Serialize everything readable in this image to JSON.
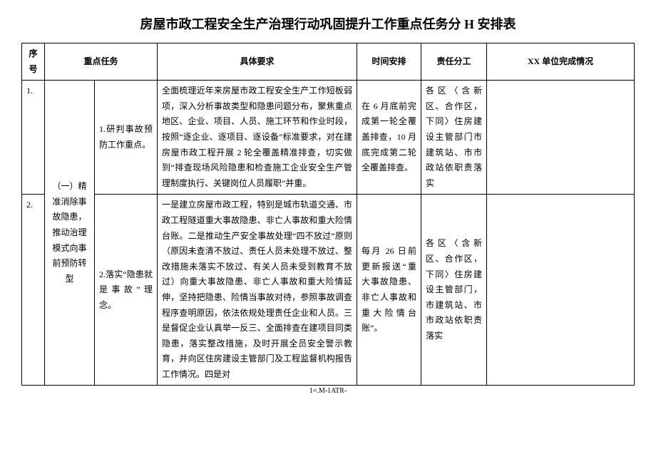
{
  "title": "房屋市政工程安全生产治理行动巩固提升工作重点任务分 H 安排表",
  "headers": {
    "seq": "序号",
    "task": "重点任务",
    "req": "具体要求",
    "time": "时间安排",
    "resp": "责任分工",
    "status": "XX 单位完成情况"
  },
  "group_task": "（一）精准消除事故隐患，推动治理模式向事前预防转型",
  "rows": [
    {
      "seq": "1.",
      "sub": "1.研判事故预防工作重点。",
      "req": "全面梳理近年来房屋市政工程安全生产工作短板弱项，深入分析事故类型和隐患问题分布，聚焦重点地区、企业、项目、人员、施工环节和作业时段，按照“逐企业、逐项目、逐设备”标准要求，对在建房屋市政工程开展 2 轮全覆盖精准排查，切实做到“排查现场风险隐患和检查施工企业安全生产管理制度执行、关键岗位人员履职”并重。",
      "time": "在 6 月底前完成第一轮全覆盖排查，10 月底完成第二轮全覆盖排查。",
      "resp": "各区〈含新区、合作区，下同〉住房建设主管部门市建筑站、市市政站依职责落实",
      "status": ""
    },
    {
      "seq": "2.",
      "sub": "2.落实“隐患就是事故”理念。",
      "req": "一是建立房屋市政工程，特别是城市轨道交通、市政工程隧道重大事故隐患、非亡人事故和重大险情台账。二是推动生产安全事故处理“四不放过”原则（原因未查清不放过、责任人员未处理不放过、整改措施未落实不放过、有关人员未受到教育不放过）向重大事故隐患、非亡人事故和重大险情延伸，坚持把隐患、险情当事故对待，参照事故调查程序查明原因，依法依规处理责任企业和人员。三是督促企业认真举一反三、全面排查在建项目同类隐患，落实整改措施，及时开展全员安全警示教育，并向区住房建设主管部门及工程监督机构报告工作情况。四是对",
      "time": "每月 26 日前更新报送“重大事故隐患、非亡人事故和重大险情台账”。",
      "resp": "各区〈含新区、合作区，下同〉住房建设主管部门，市建筑站、市市政站依职责落实",
      "status": ""
    }
  ],
  "footer": "1=.M-1ATR-",
  "style": {
    "background_color": "#ffffff",
    "border_color": "#000000",
    "text_color": "#000000",
    "title_fontsize": 18,
    "body_fontsize": 12,
    "line_height": 1.8
  }
}
